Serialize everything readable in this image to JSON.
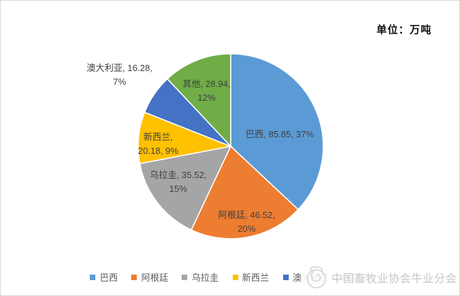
{
  "chart_data": {
    "type": "pie",
    "title": "",
    "unit_label": "单位：万吨",
    "start_angle": 0,
    "direction": "clockwise",
    "legend_position": "bottom",
    "data_label_format": "label, value, percent",
    "slices": [
      {
        "label": "巴西",
        "value": 85.85,
        "percent": 37,
        "color": "#5B9BD5"
      },
      {
        "label": "阿根廷",
        "value": 46.52,
        "percent": 20,
        "color": "#ED7D31"
      },
      {
        "label": "乌拉圭",
        "value": 35.52,
        "percent": 15,
        "color": "#A5A5A5"
      },
      {
        "label": "新西兰",
        "value": 20.18,
        "percent": 9,
        "color": "#FFC000"
      },
      {
        "label": "澳大利亚",
        "value": 16.28,
        "percent": 7,
        "color": "#4472C4"
      },
      {
        "label": "其他",
        "value": 28.94,
        "percent": 12,
        "color": "#70AD47"
      }
    ]
  },
  "watermark": {
    "text": "中国畜牧业协会牛业分会"
  }
}
